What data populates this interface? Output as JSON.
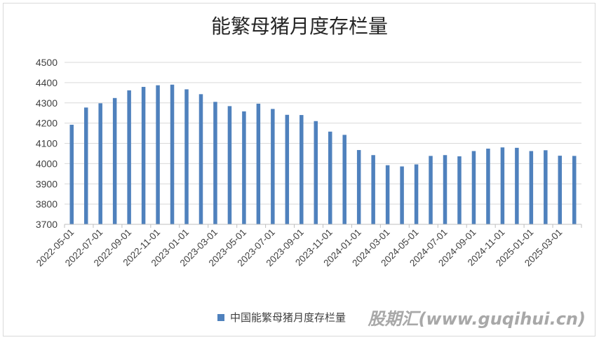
{
  "watermark": "股期汇(www.guqihui.cn)",
  "chart_data": {
    "type": "bar",
    "title": "能繁母猪月度存栏量",
    "xlabel": "",
    "ylabel": "",
    "ylim": [
      3700,
      4500
    ],
    "yticks": [
      3700,
      3800,
      3900,
      4000,
      4100,
      4200,
      4300,
      4400,
      4500
    ],
    "grid": true,
    "legend_position": "bottom",
    "bar_color": "#4f81bd",
    "categories": [
      "2022-05-01",
      "2022-06-01",
      "2022-07-01",
      "2022-08-01",
      "2022-09-01",
      "2022-10-01",
      "2022-11-01",
      "2022-12-01",
      "2023-01-01",
      "2023-02-01",
      "2023-03-01",
      "2023-04-01",
      "2023-05-01",
      "2023-06-01",
      "2023-07-01",
      "2023-08-01",
      "2023-09-01",
      "2023-10-01",
      "2023-11-01",
      "2023-12-01",
      "2024-01-01",
      "2024-02-01",
      "2024-03-01",
      "2024-04-01",
      "2024-05-01",
      "2024-06-01",
      "2024-07-01",
      "2024-08-01",
      "2024-09-01",
      "2024-10-01",
      "2024-11-01",
      "2024-12-01",
      "2025-01-01",
      "2025-02-01",
      "2025-03-01",
      "2025-04-01"
    ],
    "xtick_labels": [
      "2022-05-01",
      "2022-07-01",
      "2022-09-01",
      "2022-11-01",
      "2023-01-01",
      "2023-03-01",
      "2023-05-01",
      "2023-07-01",
      "2023-09-01",
      "2023-11-01",
      "2024-01-01",
      "2024-03-01",
      "2024-05-01",
      "2024-07-01",
      "2024-09-01",
      "2024-11-01",
      "2025-01-01",
      "2025-03-01"
    ],
    "series": [
      {
        "name": "中国能繁母猪月度存栏量",
        "values": [
          4192,
          4277,
          4298,
          4324,
          4362,
          4379,
          4387,
          4390,
          4367,
          4343,
          4305,
          4284,
          4258,
          4296,
          4270,
          4241,
          4240,
          4210,
          4158,
          4142,
          4067,
          4042,
          3992,
          3986,
          3996,
          4038,
          4042,
          4036,
          4062,
          4074,
          4080,
          4078,
          4062,
          4066,
          4039,
          4038
        ]
      }
    ]
  }
}
